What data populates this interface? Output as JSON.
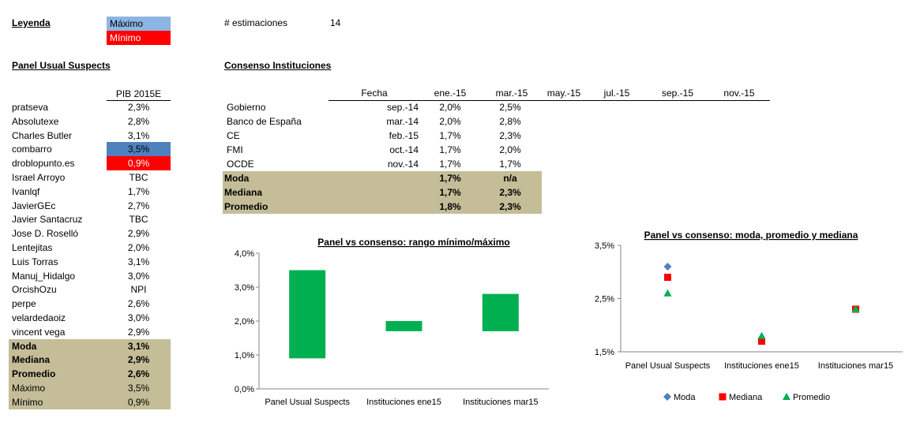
{
  "legend": {
    "title": "Leyenda",
    "max_label": "Máximo",
    "min_label": "Mínimo",
    "max_color": "#8db4e2",
    "min_color": "#ff0000"
  },
  "estimaciones": {
    "label": "# estimaciones",
    "value": "14"
  },
  "panel": {
    "title": "Panel Usual Suspects",
    "column_header": "PIB 2015E",
    "rows": [
      {
        "name": "pratseva",
        "value": "2,3%"
      },
      {
        "name": "Absolutexe",
        "value": "2,8%"
      },
      {
        "name": "Charles Butler",
        "value": "3,1%"
      },
      {
        "name": "combarro",
        "value": "3,5%"
      },
      {
        "name": "droblopunto.es",
        "value": "0,9%"
      },
      {
        "name": "Israel Arroyo",
        "value": "TBC"
      },
      {
        "name": "Ivanlqf",
        "value": "1,7%"
      },
      {
        "name": "JavierGEc",
        "value": "2,7%"
      },
      {
        "name": "Javier Santacruz",
        "value": "TBC"
      },
      {
        "name": "Jose D. Roselló",
        "value": "2,9%"
      },
      {
        "name": "Lentejitas",
        "value": "2,0%"
      },
      {
        "name": "Luis Torras",
        "value": "3,1%"
      },
      {
        "name": "Manuj_Hidalgo",
        "value": "3,0%"
      },
      {
        "name": "OrcishOzu",
        "value": "NPI"
      },
      {
        "name": "perpe",
        "value": "2,6%"
      },
      {
        "name": "velardedaoiz",
        "value": "3,0%"
      },
      {
        "name": "vincent vega",
        "value": "2,9%"
      }
    ],
    "stats": [
      {
        "name": "Moda",
        "value": "3,1%"
      },
      {
        "name": "Mediana",
        "value": "2,9%"
      },
      {
        "name": "Promedio",
        "value": "2,6%"
      },
      {
        "name": "Máximo",
        "value": "3,5%"
      },
      {
        "name": "Mínimo",
        "value": "0,9%"
      }
    ]
  },
  "consenso": {
    "title": "Consenso Instituciones",
    "headers": [
      "Fecha",
      "ene.-15",
      "mar.-15",
      "may.-15",
      "jul.-15",
      "sep.-15",
      "nov.-15"
    ],
    "rows": [
      {
        "name": "Gobierno",
        "fecha": "sep.-14",
        "ene": "2,0%",
        "mar": "2,5%"
      },
      {
        "name": "Banco de España",
        "fecha": "mar.-14",
        "ene": "2,0%",
        "mar": "2,8%"
      },
      {
        "name": "CE",
        "fecha": "feb.-15",
        "ene": "1,7%",
        "mar": "2,3%"
      },
      {
        "name": "FMI",
        "fecha": "oct.-14",
        "ene": "1,7%",
        "mar": "2,0%"
      },
      {
        "name": "OCDE",
        "fecha": "nov.-14",
        "ene": "1,7%",
        "mar": "1,7%"
      }
    ],
    "stats": [
      {
        "name": "Moda",
        "ene": "1,7%",
        "mar": "n/a"
      },
      {
        "name": "Mediana",
        "ene": "1,7%",
        "mar": "2,3%"
      },
      {
        "name": "Promedio",
        "ene": "1,8%",
        "mar": "2,3%"
      }
    ]
  },
  "chart_data": [
    {
      "type": "bar",
      "title": "Panel vs consenso: rango mínimo/máximo",
      "categories": [
        "Panel Usual Suspects",
        "Instituciones ene15",
        "Instituciones mar15"
      ],
      "ranges": [
        [
          0.9,
          3.5
        ],
        [
          1.7,
          2.0
        ],
        [
          1.7,
          2.8
        ]
      ],
      "ylim": [
        0,
        4
      ],
      "yticks": [
        "0,0%",
        "1,0%",
        "2,0%",
        "3,0%",
        "4,0%"
      ],
      "color": "#00b050"
    },
    {
      "type": "scatter",
      "title": "Panel vs consenso: moda, promedio y mediana",
      "categories": [
        "Panel Usual Suspects",
        "Instituciones ene15",
        "Instituciones mar15"
      ],
      "ylim": [
        1.5,
        3.5
      ],
      "yticks": [
        "1,5%",
        "2,5%",
        "3,5%"
      ],
      "series": [
        {
          "name": "Moda",
          "values": [
            3.1,
            1.7,
            null
          ],
          "color": "#4f81bd",
          "marker": "diamond"
        },
        {
          "name": "Mediana",
          "values": [
            2.9,
            1.7,
            2.3
          ],
          "color": "#ff0000",
          "marker": "square"
        },
        {
          "name": "Promedio",
          "values": [
            2.6,
            1.8,
            2.3
          ],
          "color": "#00b050",
          "marker": "triangle"
        }
      ]
    }
  ]
}
